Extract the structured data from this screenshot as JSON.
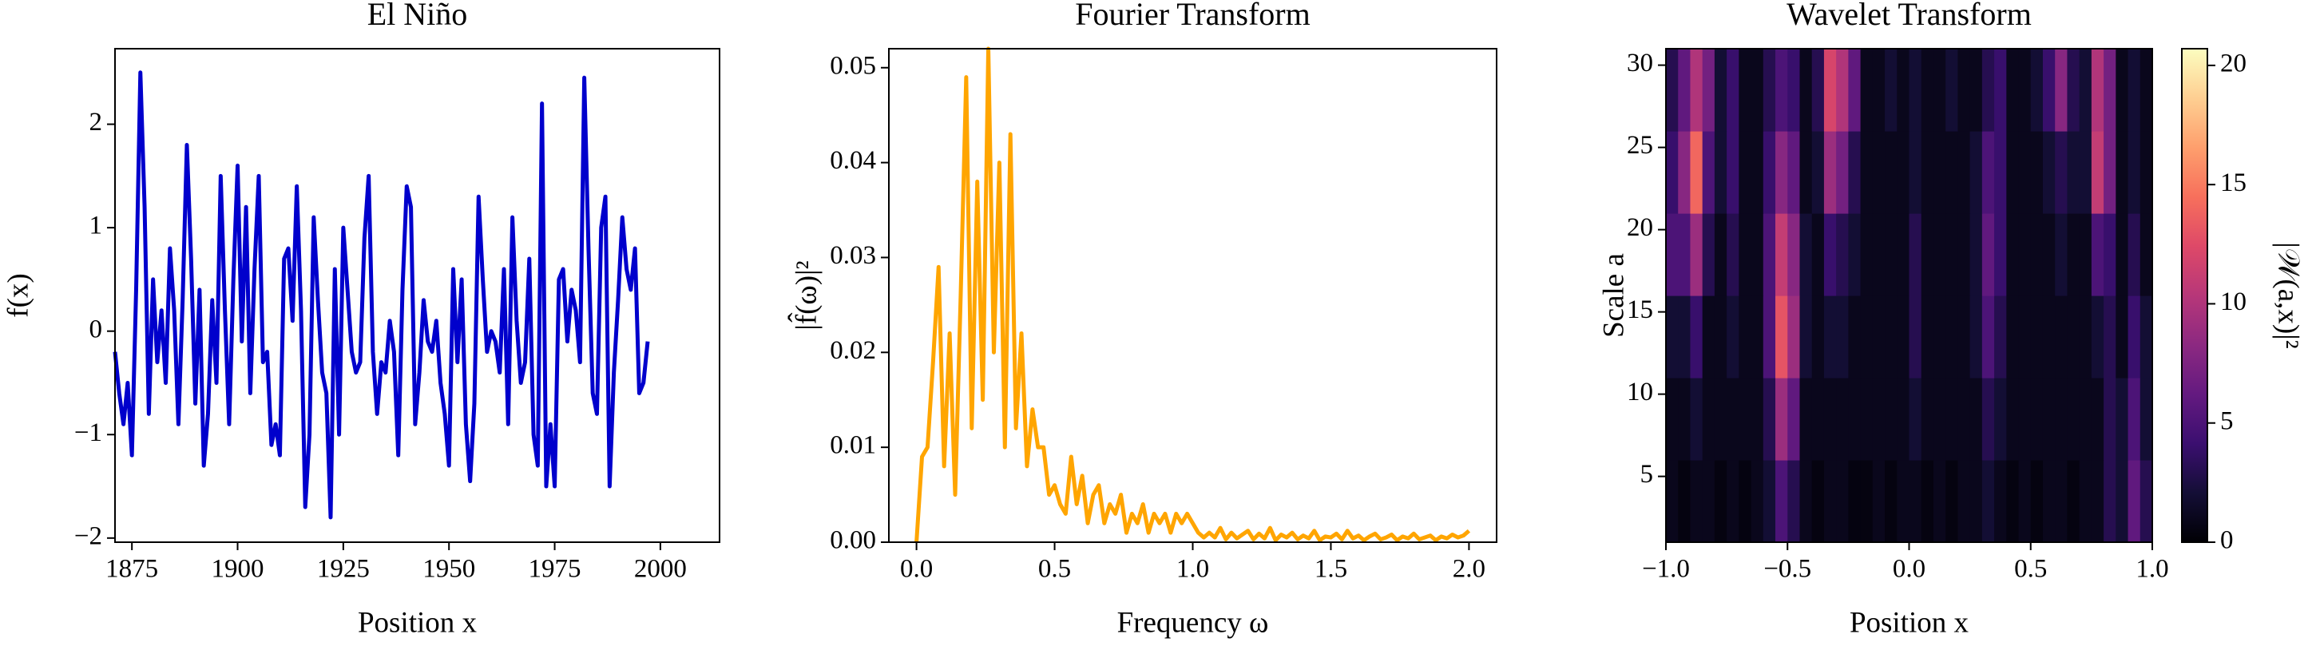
{
  "chart_data": [
    {
      "type": "line",
      "title": "El Niño",
      "x_label": "Position x",
      "y_label": "f(x)",
      "color": "#0000cc",
      "x": [
        1871,
        1872,
        1873,
        1874,
        1875,
        1876,
        1877,
        1878,
        1879,
        1880,
        1881,
        1882,
        1883,
        1884,
        1885,
        1886,
        1887,
        1888,
        1889,
        1890,
        1891,
        1892,
        1893,
        1894,
        1895,
        1896,
        1897,
        1898,
        1899,
        1900,
        1901,
        1902,
        1903,
        1904,
        1905,
        1906,
        1907,
        1908,
        1909,
        1910,
        1911,
        1912,
        1913,
        1914,
        1915,
        1916,
        1917,
        1918,
        1919,
        1920,
        1921,
        1922,
        1923,
        1924,
        1925,
        1926,
        1927,
        1928,
        1929,
        1930,
        1931,
        1932,
        1933,
        1934,
        1935,
        1936,
        1937,
        1938,
        1939,
        1940,
        1941,
        1942,
        1943,
        1944,
        1945,
        1946,
        1947,
        1948,
        1949,
        1950,
        1951,
        1952,
        1953,
        1954,
        1955,
        1956,
        1957,
        1958,
        1959,
        1960,
        1961,
        1962,
        1963,
        1964,
        1965,
        1966,
        1967,
        1968,
        1969,
        1970,
        1971,
        1972,
        1973,
        1974,
        1975,
        1976,
        1977,
        1978,
        1979,
        1980,
        1981,
        1982,
        1983,
        1984,
        1985,
        1986,
        1987,
        1988,
        1989,
        1990,
        1991,
        1992,
        1993,
        1994,
        1995,
        1996,
        1997
      ],
      "values": [
        -0.2,
        -0.6,
        -0.9,
        -0.5,
        -1.2,
        0.4,
        2.5,
        1.2,
        -0.8,
        0.5,
        -0.3,
        0.2,
        -0.5,
        0.8,
        0.2,
        -0.9,
        0.3,
        1.8,
        0.7,
        -0.7,
        0.4,
        -1.3,
        -0.8,
        0.3,
        -0.5,
        1.5,
        0.2,
        -0.9,
        0.5,
        1.6,
        -0.1,
        1.2,
        -0.6,
        0.6,
        1.5,
        -0.3,
        -0.2,
        -1.1,
        -0.9,
        -1.2,
        0.7,
        0.8,
        0.1,
        1.4,
        0.2,
        -1.7,
        -1.0,
        1.1,
        0.3,
        -0.4,
        -0.6,
        -1.8,
        0.6,
        -1.0,
        1.0,
        0.4,
        -0.2,
        -0.4,
        -0.3,
        0.9,
        1.5,
        -0.2,
        -0.8,
        -0.3,
        -0.4,
        0.1,
        -0.2,
        -1.2,
        0.4,
        1.4,
        1.2,
        -0.9,
        -0.4,
        0.3,
        -0.1,
        -0.2,
        0.1,
        -0.5,
        -0.8,
        -1.3,
        0.6,
        -0.3,
        0.5,
        -0.9,
        -1.45,
        -0.7,
        1.3,
        0.5,
        -0.2,
        0.0,
        -0.1,
        -0.4,
        0.6,
        -0.9,
        1.1,
        0.1,
        -0.5,
        -0.3,
        0.7,
        -1.0,
        -1.3,
        2.2,
        -1.5,
        -0.9,
        -1.5,
        0.5,
        0.6,
        -0.1,
        0.4,
        0.2,
        -0.3,
        2.45,
        0.8,
        -0.6,
        -0.8,
        1.0,
        1.3,
        -1.5,
        -0.4,
        0.3,
        1.1,
        0.6,
        0.4,
        0.8,
        -0.6,
        -0.5,
        -0.1
      ],
      "xlim": [
        1871,
        2014
      ],
      "ylim": [
        -2.04,
        2.73
      ],
      "xticks": [
        1875,
        1900,
        1925,
        1950,
        1975,
        2000
      ],
      "yticks": [
        {
          "value": -2,
          "label": "−2"
        },
        {
          "value": -1,
          "label": "−1"
        },
        0,
        1,
        2
      ]
    },
    {
      "type": "line",
      "title": "Fourier Transform",
      "x_label": "Frequency ω",
      "y_label": "|f̂(ω)|²",
      "color": "#ffa500",
      "x": [
        0,
        0.02,
        0.04,
        0.06,
        0.08,
        0.1,
        0.12,
        0.14,
        0.16,
        0.18,
        0.2,
        0.22,
        0.24,
        0.26,
        0.28,
        0.3,
        0.32,
        0.34,
        0.36,
        0.38,
        0.4,
        0.42,
        0.44,
        0.46,
        0.48,
        0.5,
        0.52,
        0.54,
        0.56,
        0.58,
        0.6,
        0.62,
        0.64,
        0.66,
        0.68,
        0.7,
        0.72,
        0.74,
        0.76,
        0.78,
        0.8,
        0.82,
        0.84,
        0.86,
        0.88,
        0.9,
        0.92,
        0.94,
        0.96,
        0.98,
        1.0,
        1.02,
        1.04,
        1.06,
        1.08,
        1.1,
        1.12,
        1.14,
        1.16,
        1.18,
        1.2,
        1.22,
        1.24,
        1.26,
        1.28,
        1.3,
        1.32,
        1.34,
        1.36,
        1.38,
        1.4,
        1.42,
        1.44,
        1.46,
        1.48,
        1.5,
        1.52,
        1.54,
        1.56,
        1.58,
        1.6,
        1.62,
        1.64,
        1.66,
        1.68,
        1.7,
        1.72,
        1.74,
        1.76,
        1.78,
        1.8,
        1.82,
        1.84,
        1.86,
        1.88,
        1.9,
        1.92,
        1.94,
        1.96,
        1.98,
        2.0
      ],
      "values": [
        0.0,
        0.009,
        0.01,
        0.019,
        0.029,
        0.008,
        0.022,
        0.005,
        0.026,
        0.049,
        0.012,
        0.038,
        0.015,
        0.052,
        0.02,
        0.04,
        0.01,
        0.043,
        0.012,
        0.022,
        0.008,
        0.014,
        0.01,
        0.01,
        0.005,
        0.006,
        0.004,
        0.003,
        0.009,
        0.004,
        0.007,
        0.002,
        0.005,
        0.006,
        0.002,
        0.004,
        0.003,
        0.005,
        0.001,
        0.003,
        0.002,
        0.004,
        0.001,
        0.003,
        0.002,
        0.003,
        0.001,
        0.003,
        0.002,
        0.003,
        0.002,
        0.001,
        0.0005,
        0.001,
        0.0005,
        0.0015,
        0.0003,
        0.001,
        0.0004,
        0.0008,
        0.0012,
        0.0003,
        0.0009,
        0.0004,
        0.0015,
        0.0002,
        0.0008,
        0.0005,
        0.001,
        0.0003,
        0.0007,
        0.0004,
        0.0012,
        0.0002,
        0.0006,
        0.0005,
        0.0009,
        0.0003,
        0.0012,
        0.0004,
        0.0007,
        0.0002,
        0.0006,
        0.0009,
        0.0003,
        0.0005,
        0.0008,
        0.0002,
        0.0006,
        0.0004,
        0.0009,
        0.0003,
        0.0005,
        0.0007,
        0.0002,
        0.0006,
        0.0004,
        0.0008,
        0.0005,
        0.0007,
        0.0012
      ],
      "xlim": [
        -0.1,
        2.1
      ],
      "ylim": [
        0,
        0.052
      ],
      "xticks": [
        {
          "value": 0,
          "label": "0.0"
        },
        0.5,
        {
          "value": 1,
          "label": "1.0"
        },
        1.5,
        {
          "value": 2,
          "label": "2.0"
        }
      ],
      "yticks": [
        {
          "value": 0,
          "label": "0.00"
        },
        0.01,
        0.02,
        0.03,
        0.04,
        0.05
      ]
    },
    {
      "type": "heatmap",
      "title": "Wavelet Transform",
      "x_label": "Position x",
      "y_label": "Scale a",
      "colorbar_label": "|𝒲(a,x)|²",
      "colormap": "magma",
      "x": [
        -0.975,
        -0.925,
        -0.875,
        -0.825,
        -0.775,
        -0.725,
        -0.675,
        -0.625,
        -0.575,
        -0.525,
        -0.475,
        -0.425,
        -0.375,
        -0.325,
        -0.275,
        -0.225,
        -0.175,
        -0.125,
        -0.075,
        -0.025,
        0.025,
        0.075,
        0.125,
        0.175,
        0.225,
        0.275,
        0.325,
        0.375,
        0.425,
        0.475,
        0.525,
        0.575,
        0.625,
        0.675,
        0.725,
        0.775,
        0.825,
        0.875,
        0.925,
        0.975
      ],
      "y": [
        3.5,
        8.5,
        13.5,
        18.5,
        23.5,
        28.5
      ],
      "z": [
        [
          1,
          0.5,
          1,
          1,
          0.5,
          1,
          0.5,
          1,
          2,
          5,
          3,
          1,
          0.5,
          1,
          1,
          0.5,
          0.5,
          1,
          0.5,
          1,
          1,
          0.5,
          1,
          0.5,
          1,
          1,
          2,
          1,
          0.5,
          1,
          0.5,
          1,
          1,
          0.5,
          1,
          1,
          3,
          2,
          6,
          3
        ],
        [
          1,
          1,
          2,
          1,
          1,
          1,
          1,
          1,
          3,
          9,
          6,
          1,
          1,
          1,
          1,
          1,
          1,
          1,
          1,
          1,
          2,
          1,
          1,
          1,
          1,
          1,
          3,
          2,
          1,
          1,
          1,
          1,
          1,
          1,
          1,
          1,
          3,
          2,
          5,
          2
        ],
        [
          2,
          2,
          4,
          1,
          1,
          2,
          1,
          1,
          5,
          13,
          9,
          2,
          1,
          2,
          2,
          1,
          1,
          1,
          1,
          1,
          3,
          1,
          1,
          1,
          1,
          2,
          5,
          3,
          1,
          1,
          1,
          1,
          1,
          1,
          1,
          2,
          3,
          1,
          4,
          2
        ],
        [
          5,
          5,
          9,
          3,
          1,
          3,
          1,
          1,
          5,
          11,
          8,
          2,
          1,
          4,
          3,
          2,
          1,
          1,
          1,
          1,
          3,
          1,
          1,
          1,
          1,
          2,
          6,
          4,
          1,
          1,
          1,
          1,
          2,
          1,
          1,
          5,
          4,
          1,
          3,
          1
        ],
        [
          4,
          8,
          14,
          5,
          2,
          4,
          1,
          1,
          4,
          8,
          6,
          1,
          2,
          9,
          7,
          3,
          1,
          1,
          1,
          1,
          2,
          1,
          1,
          1,
          1,
          2,
          5,
          4,
          1,
          1,
          1,
          2,
          3,
          2,
          2,
          11,
          7,
          1,
          2,
          1
        ],
        [
          3,
          6,
          10,
          7,
          2,
          4,
          1,
          1,
          3,
          5,
          4,
          1,
          3,
          12,
          10,
          6,
          1,
          1,
          2,
          1,
          2,
          1,
          1,
          2,
          1,
          1,
          3,
          4,
          1,
          1,
          2,
          4,
          8,
          3,
          2,
          10,
          7,
          1,
          2,
          1
        ]
      ],
      "xlim": [
        -1,
        1
      ],
      "ylim": [
        1,
        31
      ],
      "zlim": [
        0,
        20.7
      ],
      "xticks": [
        {
          "value": -1,
          "label": "−1.0"
        },
        {
          "value": -0.5,
          "label": "−0.5"
        },
        {
          "value": 0,
          "label": "0.0"
        },
        0.5,
        {
          "value": 1,
          "label": "1.0"
        }
      ],
      "yticks": [
        5,
        10,
        15,
        20,
        25,
        30
      ],
      "cticks": [
        0,
        5,
        10,
        15,
        20
      ]
    }
  ]
}
